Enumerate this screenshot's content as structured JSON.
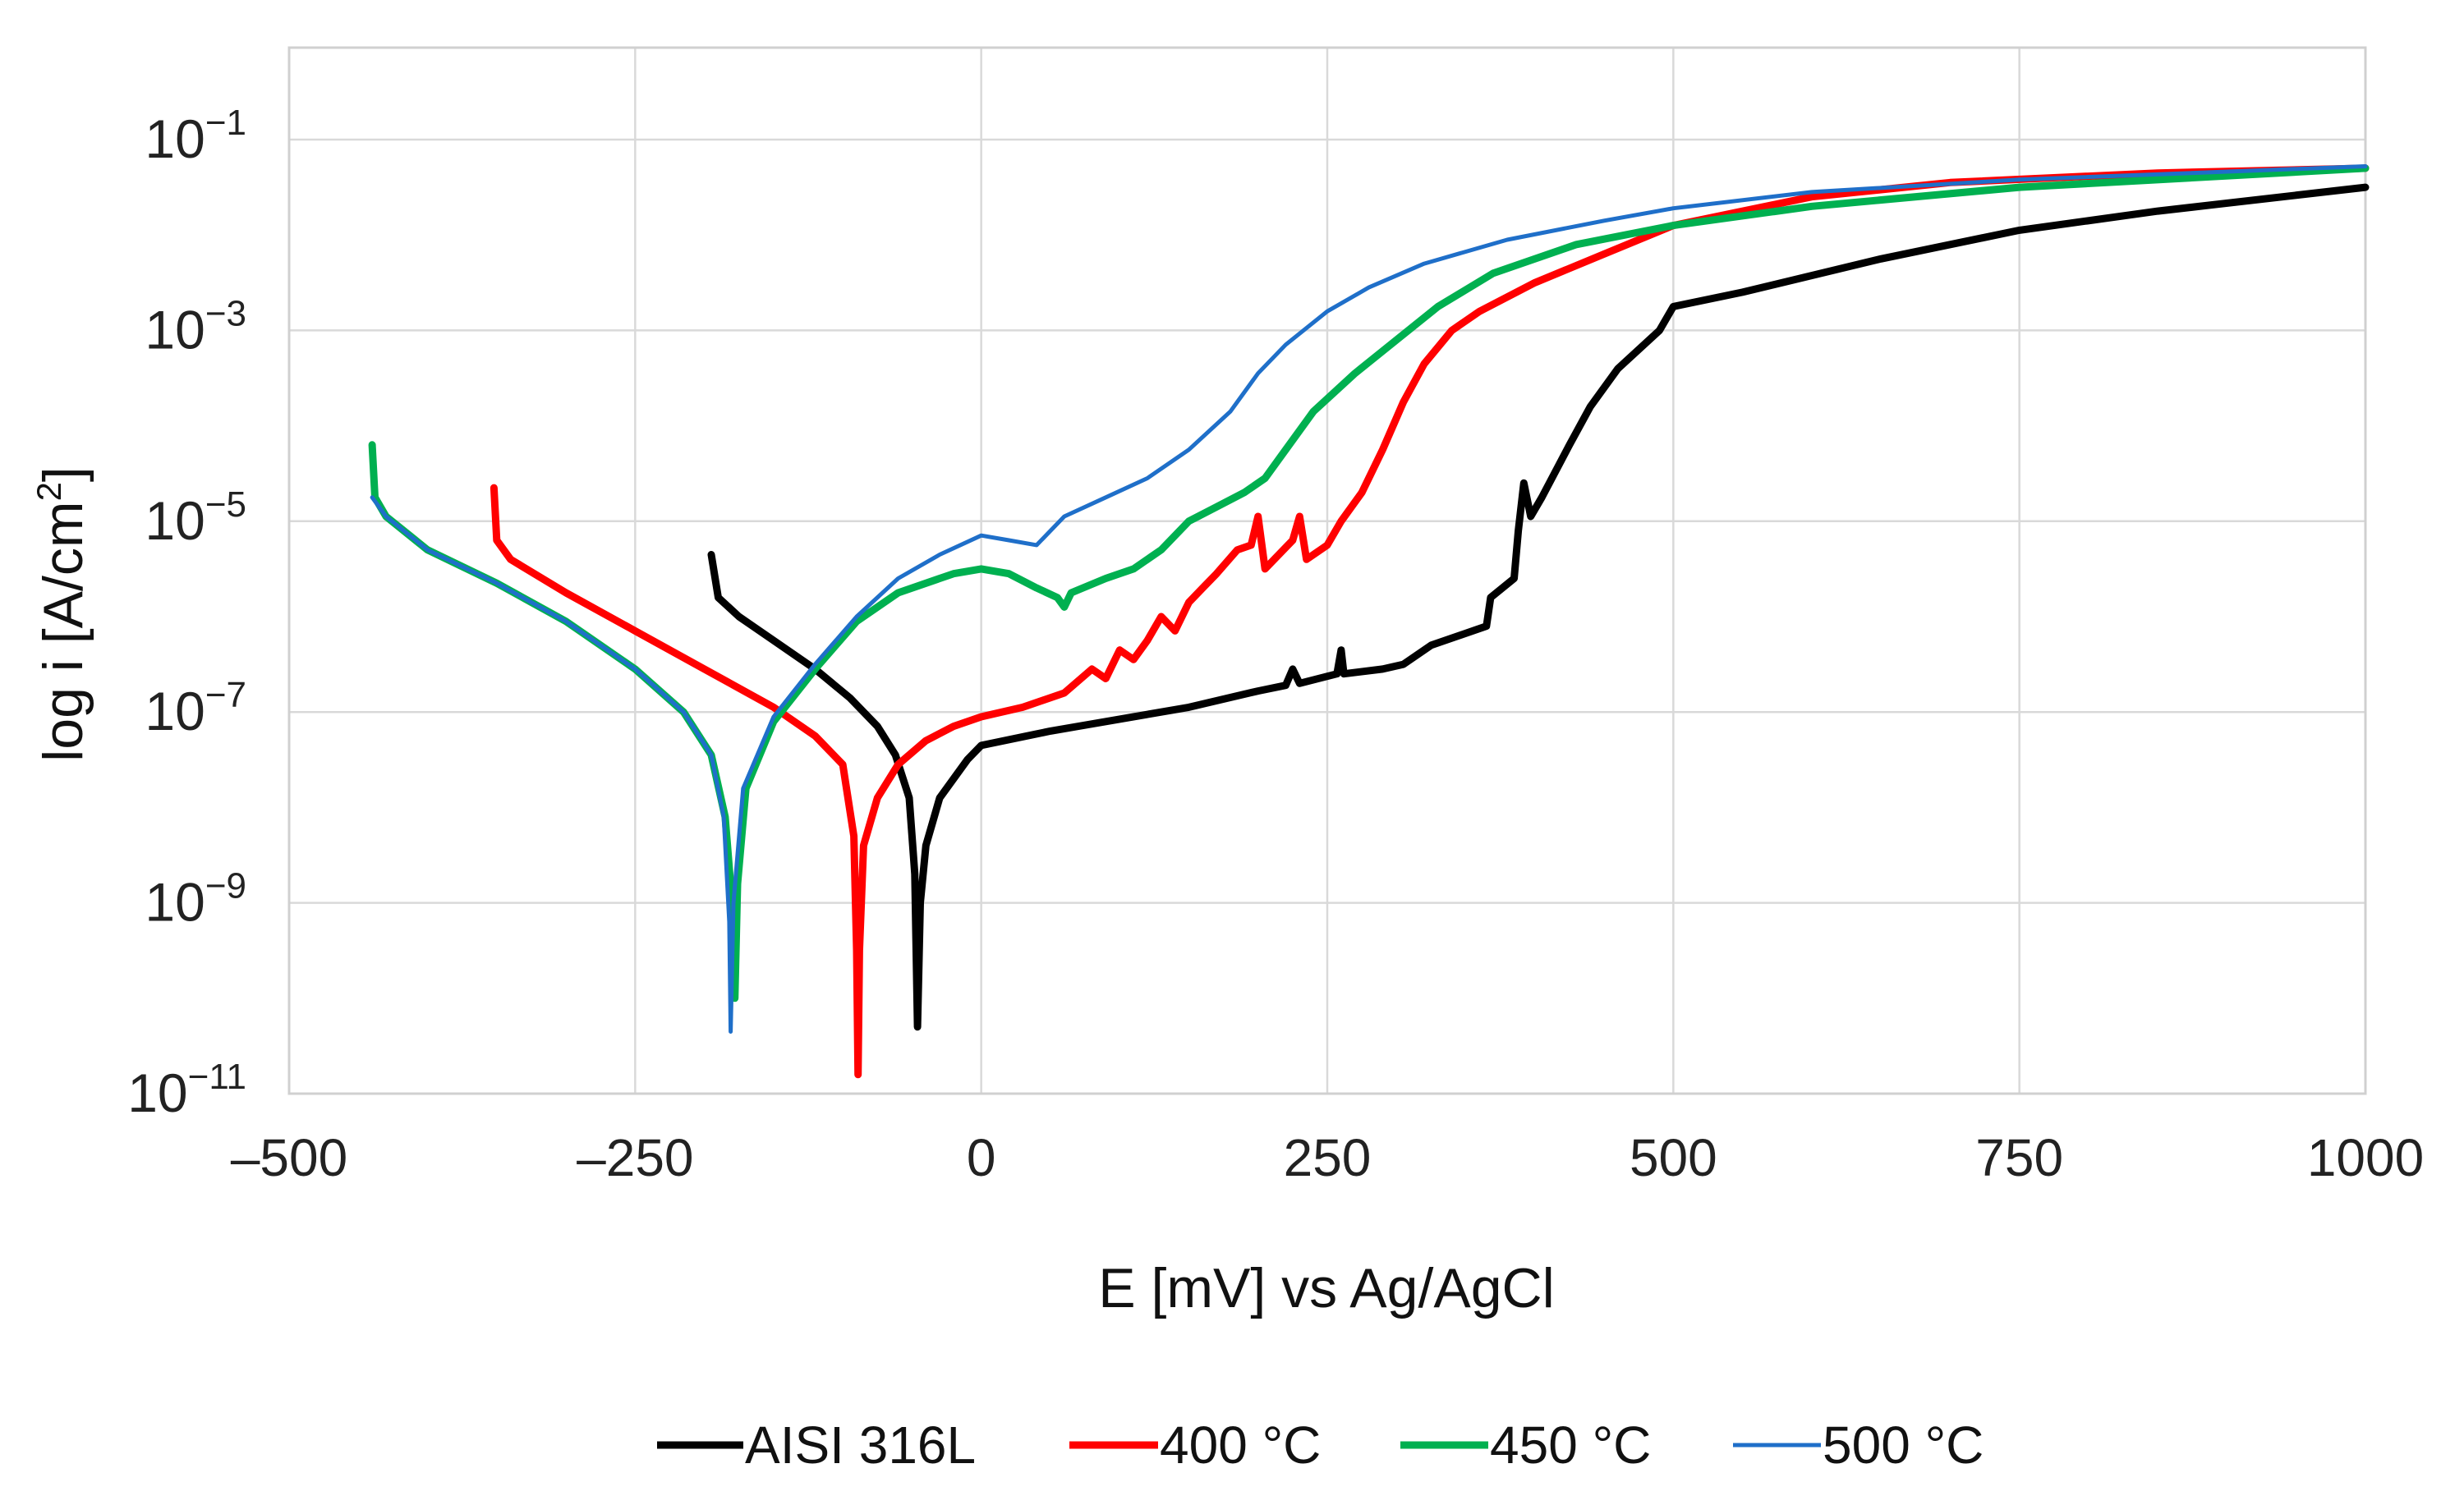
{
  "chart_data": {
    "type": "line",
    "title": "",
    "xlabel": "E [mV]  vs Ag/AgCl",
    "ylabel_main": "log i [A/cm",
    "ylabel_sup": "2",
    "ylabel_end": "]",
    "xlim": [
      -500,
      1000
    ],
    "ylim_log10": [
      -11,
      0
    ],
    "y_scale": "log",
    "grid": true,
    "legend_position": "bottom-center",
    "x_ticks": [
      {
        "value": -500,
        "label": "–500"
      },
      {
        "value": -250,
        "label": "–250"
      },
      {
        "value": 0,
        "label": "0"
      },
      {
        "value": 250,
        "label": "250"
      },
      {
        "value": 500,
        "label": "500"
      },
      {
        "value": 750,
        "label": "750"
      },
      {
        "value": 1000,
        "label": "1000"
      }
    ],
    "y_ticks": [
      {
        "exp": -1,
        "base": "10",
        "sup": "−1"
      },
      {
        "exp": -3,
        "base": "10",
        "sup": "−3"
      },
      {
        "exp": -5,
        "base": "10",
        "sup": "−5"
      },
      {
        "exp": -7,
        "base": "10",
        "sup": "−7"
      },
      {
        "exp": -9,
        "base": "10",
        "sup": "−9"
      },
      {
        "exp": -11,
        "base": "10",
        "sup": "−11"
      }
    ],
    "series": [
      {
        "name": "AISI 316L",
        "color": "#000000",
        "points": [
          [
            -195,
            -5.35
          ],
          [
            -190,
            -5.8
          ],
          [
            -175,
            -6.0
          ],
          [
            -150,
            -6.25
          ],
          [
            -120,
            -6.55
          ],
          [
            -95,
            -6.85
          ],
          [
            -75,
            -7.15
          ],
          [
            -62,
            -7.45
          ],
          [
            -52,
            -7.9
          ],
          [
            -48,
            -8.7
          ],
          [
            -46,
            -10.3
          ],
          [
            -44,
            -9.0
          ],
          [
            -40,
            -8.4
          ],
          [
            -30,
            -7.9
          ],
          [
            -10,
            -7.5
          ],
          [
            0,
            -7.35
          ],
          [
            50,
            -7.2
          ],
          [
            150,
            -6.95
          ],
          [
            200,
            -6.78
          ],
          [
            220,
            -6.72
          ],
          [
            225,
            -6.55
          ],
          [
            230,
            -6.7
          ],
          [
            257,
            -6.6
          ],
          [
            260,
            -6.35
          ],
          [
            262,
            -6.6
          ],
          [
            290,
            -6.55
          ],
          [
            305,
            -6.5
          ],
          [
            325,
            -6.3
          ],
          [
            365,
            -6.1
          ],
          [
            368,
            -5.8
          ],
          [
            385,
            -5.6
          ],
          [
            388,
            -5.1
          ],
          [
            392,
            -4.6
          ],
          [
            397,
            -4.95
          ],
          [
            405,
            -4.75
          ],
          [
            425,
            -4.2
          ],
          [
            440,
            -3.8
          ],
          [
            460,
            -3.4
          ],
          [
            490,
            -3.0
          ],
          [
            500,
            -2.75
          ],
          [
            550,
            -2.6
          ],
          [
            650,
            -2.25
          ],
          [
            750,
            -1.95
          ],
          [
            850,
            -1.75
          ],
          [
            1000,
            -1.5
          ]
        ]
      },
      {
        "name": "400 °C",
        "color": "#ff0000",
        "points": [
          [
            -352,
            -4.65
          ],
          [
            -350,
            -5.2
          ],
          [
            -340,
            -5.4
          ],
          [
            -300,
            -5.75
          ],
          [
            -250,
            -6.15
          ],
          [
            -200,
            -6.55
          ],
          [
            -150,
            -6.95
          ],
          [
            -120,
            -7.25
          ],
          [
            -100,
            -7.55
          ],
          [
            -92,
            -8.3
          ],
          [
            -90,
            -9.5
          ],
          [
            -89,
            -10.8
          ],
          [
            -88,
            -9.5
          ],
          [
            -85,
            -8.4
          ],
          [
            -75,
            -7.9
          ],
          [
            -60,
            -7.55
          ],
          [
            -40,
            -7.3
          ],
          [
            -20,
            -7.15
          ],
          [
            0,
            -7.05
          ],
          [
            30,
            -6.95
          ],
          [
            60,
            -6.8
          ],
          [
            80,
            -6.55
          ],
          [
            90,
            -6.65
          ],
          [
            100,
            -6.35
          ],
          [
            110,
            -6.45
          ],
          [
            120,
            -6.25
          ],
          [
            130,
            -6.0
          ],
          [
            140,
            -6.15
          ],
          [
            150,
            -5.85
          ],
          [
            160,
            -5.7
          ],
          [
            170,
            -5.55
          ],
          [
            185,
            -5.3
          ],
          [
            195,
            -5.25
          ],
          [
            200,
            -4.95
          ],
          [
            205,
            -5.5
          ],
          [
            225,
            -5.2
          ],
          [
            230,
            -4.95
          ],
          [
            235,
            -5.4
          ],
          [
            250,
            -5.25
          ],
          [
            260,
            -5.0
          ],
          [
            275,
            -4.7
          ],
          [
            290,
            -4.25
          ],
          [
            305,
            -3.75
          ],
          [
            320,
            -3.35
          ],
          [
            340,
            -3.0
          ],
          [
            360,
            -2.8
          ],
          [
            400,
            -2.5
          ],
          [
            450,
            -2.2
          ],
          [
            500,
            -1.9
          ],
          [
            600,
            -1.6
          ],
          [
            700,
            -1.45
          ],
          [
            850,
            -1.35
          ],
          [
            1000,
            -1.3
          ]
        ]
      },
      {
        "name": "450 °C",
        "color": "#00b050",
        "points": [
          [
            -440,
            -4.2
          ],
          [
            -438,
            -4.75
          ],
          [
            -430,
            -4.95
          ],
          [
            -400,
            -5.3
          ],
          [
            -350,
            -5.65
          ],
          [
            -300,
            -6.05
          ],
          [
            -250,
            -6.55
          ],
          [
            -215,
            -7.0
          ],
          [
            -195,
            -7.45
          ],
          [
            -185,
            -8.1
          ],
          [
            -180,
            -9.0
          ],
          [
            -178,
            -10.0
          ],
          [
            -176,
            -8.8
          ],
          [
            -170,
            -7.8
          ],
          [
            -150,
            -7.1
          ],
          [
            -120,
            -6.55
          ],
          [
            -90,
            -6.05
          ],
          [
            -60,
            -5.75
          ],
          [
            -20,
            -5.55
          ],
          [
            0,
            -5.5
          ],
          [
            20,
            -5.55
          ],
          [
            40,
            -5.7
          ],
          [
            55,
            -5.8
          ],
          [
            60,
            -5.9
          ],
          [
            65,
            -5.75
          ],
          [
            90,
            -5.6
          ],
          [
            110,
            -5.5
          ],
          [
            130,
            -5.3
          ],
          [
            150,
            -5.0
          ],
          [
            170,
            -4.85
          ],
          [
            190,
            -4.7
          ],
          [
            205,
            -4.55
          ],
          [
            220,
            -4.25
          ],
          [
            240,
            -3.85
          ],
          [
            270,
            -3.45
          ],
          [
            300,
            -3.1
          ],
          [
            330,
            -2.75
          ],
          [
            370,
            -2.4
          ],
          [
            430,
            -2.1
          ],
          [
            500,
            -1.9
          ],
          [
            600,
            -1.7
          ],
          [
            750,
            -1.5
          ],
          [
            1000,
            -1.3
          ]
        ]
      },
      {
        "name": "500 °C",
        "color": "#1f6fc9",
        "points": [
          [
            -440,
            -4.75
          ],
          [
            -430,
            -4.95
          ],
          [
            -400,
            -5.3
          ],
          [
            -350,
            -5.65
          ],
          [
            -300,
            -6.05
          ],
          [
            -250,
            -6.55
          ],
          [
            -215,
            -7.0
          ],
          [
            -195,
            -7.45
          ],
          [
            -186,
            -8.1
          ],
          [
            -182,
            -9.2
          ],
          [
            -181,
            -10.35
          ],
          [
            -179,
            -9.0
          ],
          [
            -172,
            -7.8
          ],
          [
            -150,
            -7.05
          ],
          [
            -120,
            -6.5
          ],
          [
            -90,
            -6.0
          ],
          [
            -60,
            -5.6
          ],
          [
            -30,
            -5.35
          ],
          [
            0,
            -5.15
          ],
          [
            20,
            -5.2
          ],
          [
            40,
            -5.25
          ],
          [
            60,
            -4.95
          ],
          [
            90,
            -4.75
          ],
          [
            120,
            -4.55
          ],
          [
            150,
            -4.25
          ],
          [
            180,
            -3.85
          ],
          [
            200,
            -3.45
          ],
          [
            220,
            -3.15
          ],
          [
            250,
            -2.8
          ],
          [
            280,
            -2.55
          ],
          [
            320,
            -2.3
          ],
          [
            380,
            -2.05
          ],
          [
            450,
            -1.85
          ],
          [
            500,
            -1.72
          ],
          [
            600,
            -1.55
          ],
          [
            750,
            -1.42
          ],
          [
            1000,
            -1.28
          ]
        ]
      }
    ]
  },
  "legend": [
    {
      "label": "AISI 316L",
      "color": "#000000"
    },
    {
      "label": "400 °C",
      "color": "#ff0000"
    },
    {
      "label": "450 °C",
      "color": "#00b050"
    },
    {
      "label": "500 °C",
      "color": "#1f6fc9"
    }
  ]
}
